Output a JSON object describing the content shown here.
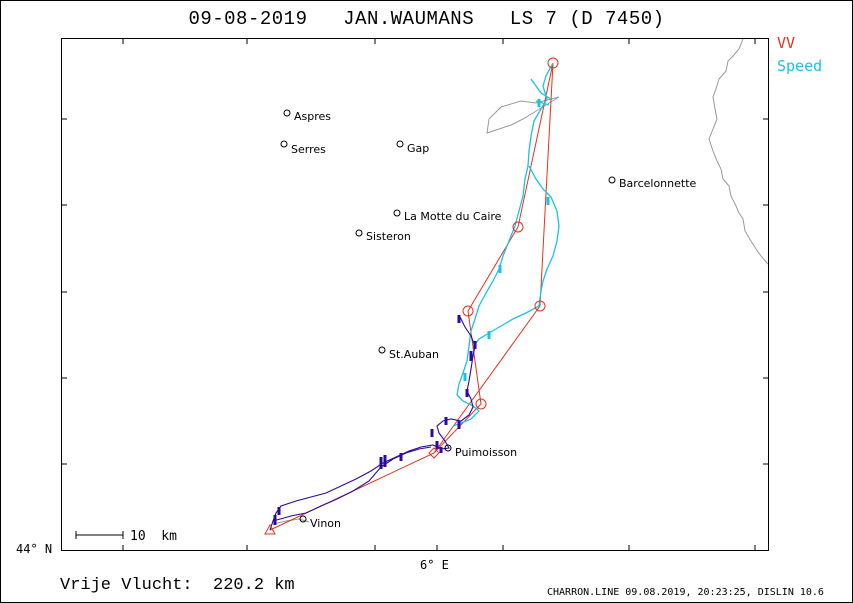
{
  "header": {
    "title": "09-08-2019   JAN.WAUMANS   LS 7 (D 7450)"
  },
  "legend": {
    "vv_label": "VV",
    "speed_label": "Speed",
    "vv_color": "#e8301a",
    "speed_color": "#19c2e8",
    "vario_color": "#2a0aa0"
  },
  "axes": {
    "lat_label": "44° N",
    "lon_label": "6° E"
  },
  "scale_bar": {
    "label": "10  km"
  },
  "towns": [
    {
      "name": "Aspres"
    },
    {
      "name": "Serres"
    },
    {
      "name": "Gap"
    },
    {
      "name": "Barcelonnette"
    },
    {
      "name": "La Motte du Caire"
    },
    {
      "name": "Sisteron"
    },
    {
      "name": "St.Auban"
    },
    {
      "name": "Puimoisson"
    },
    {
      "name": "Vinon"
    }
  ],
  "footer": {
    "distance": "Vrije Vlucht:  220.2 km",
    "software": "CHARRON.LINE 09.08.2019, 20:23:25, DISLIN 10.6"
  },
  "icons": {
    "turnpoint": "circle-icon",
    "start": "triangle-icon",
    "finish": "diamond-icon",
    "town": "town-dot-icon"
  }
}
